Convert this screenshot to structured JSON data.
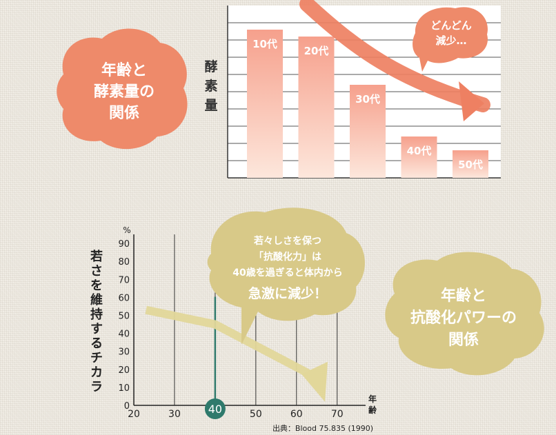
{
  "colors": {
    "enzyme_blob": "#ee8a6a",
    "bar_top": "#f6a08c",
    "bar_bottom": "#fde7dc",
    "trend_arrow": "#ee8062",
    "antiox_blob": "#d8c988",
    "antiox_arrow": "#e2d79a",
    "teal_line": "#2f7a6c",
    "teal_circle": "#2f7a6c"
  },
  "top_chart": {
    "badge_lines": [
      "年齢と",
      "酵素量の",
      "関係"
    ],
    "ylabel_chars": [
      "酵",
      "素",
      "量"
    ],
    "bubble_lines": [
      "どんどん",
      "減少…"
    ]
  },
  "bottom_chart": {
    "badge_lines": [
      "年齢と",
      "抗酸化パワーの",
      "関係"
    ],
    "bubble_lines": [
      "若々しさを保つ",
      "「抗酸化力」は",
      "40歳を過ぎると体内から",
      "急激に減少！"
    ],
    "ylabel": "若さを維持するチカラ",
    "yunit": "%",
    "xlabel_chars": [
      "年",
      "齢"
    ],
    "source": "出典：Blood 75.835 (1990)",
    "highlight_label": "40"
  },
  "chart_data": [
    {
      "type": "bar",
      "title": "年齢と酵素量の関係",
      "ylabel": "酵素量",
      "categories": [
        "10代",
        "20代",
        "30代",
        "40代",
        "50代"
      ],
      "values": [
        86,
        82,
        54,
        24,
        16
      ],
      "ylim": [
        0,
        100
      ],
      "grid": true
    },
    {
      "type": "line",
      "title": "年齢と抗酸化パワーの関係",
      "xlabel": "年齢",
      "ylabel": "若さを維持するチカラ",
      "x_ticks": [
        20,
        30,
        40,
        50,
        60,
        70
      ],
      "y_ticks": [
        0,
        10,
        20,
        30,
        40,
        50,
        60,
        70,
        80,
        90
      ],
      "xlim": [
        20,
        77
      ],
      "ylim": [
        0,
        95
      ],
      "series": [
        {
          "x": [
            23,
            40,
            67
          ],
          "y": [
            53,
            45,
            2
          ]
        }
      ],
      "highlight_x": 40,
      "grid": true
    }
  ]
}
